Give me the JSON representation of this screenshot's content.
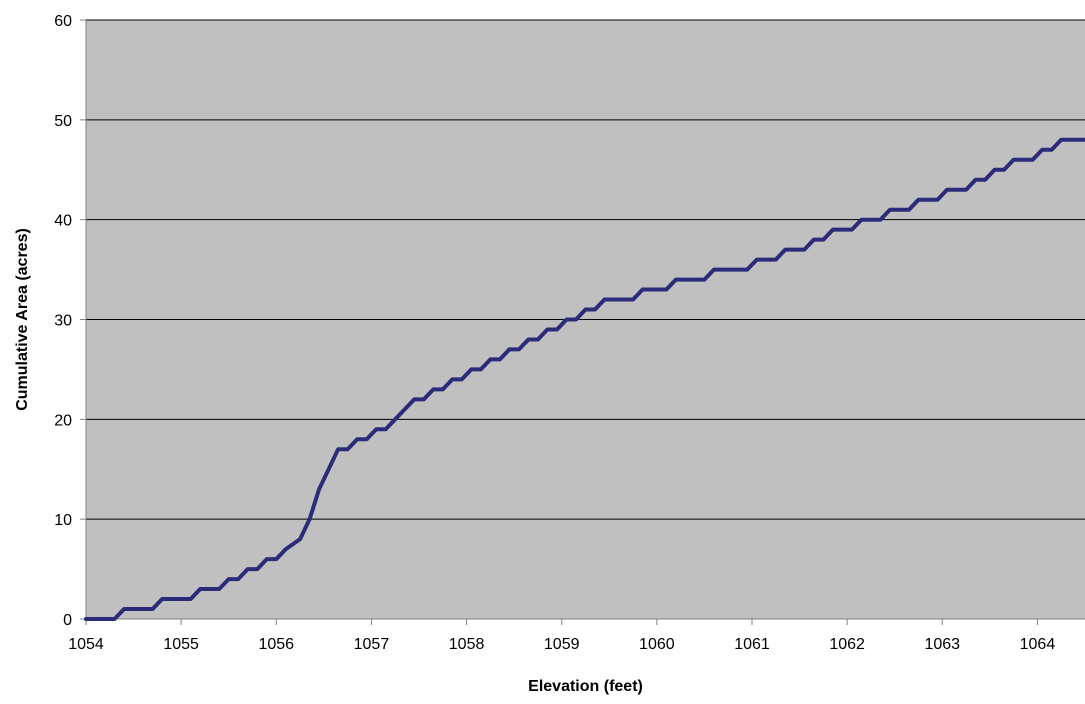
{
  "chart_data": {
    "type": "line",
    "title": "",
    "xlabel": "Elevation (feet)",
    "ylabel": "Cumulative Area (acres)",
    "xlim": [
      1054,
      1064.5
    ],
    "ylim": [
      0,
      60
    ],
    "x_ticks": [
      1054,
      1055,
      1056,
      1057,
      1058,
      1059,
      1060,
      1061,
      1062,
      1063,
      1064
    ],
    "y_ticks": [
      0,
      10,
      20,
      30,
      40,
      50,
      60
    ],
    "grid": "horizontal",
    "legend": "none",
    "plot_background": "#C0C0C0",
    "line_color": "#2B2B7A",
    "series": [
      {
        "values": [
          [
            1054.0,
            0
          ],
          [
            1054.3,
            0
          ],
          [
            1054.4,
            1
          ],
          [
            1054.7,
            1
          ],
          [
            1054.8,
            2
          ],
          [
            1055.1,
            2
          ],
          [
            1055.2,
            3
          ],
          [
            1055.4,
            3
          ],
          [
            1055.5,
            4
          ],
          [
            1055.6,
            4
          ],
          [
            1055.7,
            5
          ],
          [
            1055.8,
            5
          ],
          [
            1055.9,
            6
          ],
          [
            1056.0,
            6
          ],
          [
            1056.1,
            7
          ],
          [
            1056.25,
            8
          ],
          [
            1056.35,
            10
          ],
          [
            1056.45,
            13
          ],
          [
            1056.55,
            15
          ],
          [
            1056.65,
            17
          ],
          [
            1056.75,
            17
          ],
          [
            1056.85,
            18
          ],
          [
            1056.95,
            18
          ],
          [
            1057.05,
            19
          ],
          [
            1057.15,
            19
          ],
          [
            1057.25,
            20
          ],
          [
            1057.35,
            21
          ],
          [
            1057.45,
            22
          ],
          [
            1057.55,
            22
          ],
          [
            1057.65,
            23
          ],
          [
            1057.75,
            23
          ],
          [
            1057.85,
            24
          ],
          [
            1057.95,
            24
          ],
          [
            1058.05,
            25
          ],
          [
            1058.15,
            25
          ],
          [
            1058.25,
            26
          ],
          [
            1058.35,
            26
          ],
          [
            1058.45,
            27
          ],
          [
            1058.55,
            27
          ],
          [
            1058.65,
            28
          ],
          [
            1058.75,
            28
          ],
          [
            1058.85,
            29
          ],
          [
            1058.95,
            29
          ],
          [
            1059.05,
            30
          ],
          [
            1059.15,
            30
          ],
          [
            1059.25,
            31
          ],
          [
            1059.35,
            31
          ],
          [
            1059.45,
            32
          ],
          [
            1059.75,
            32
          ],
          [
            1059.85,
            33
          ],
          [
            1060.1,
            33
          ],
          [
            1060.2,
            34
          ],
          [
            1060.5,
            34
          ],
          [
            1060.6,
            35
          ],
          [
            1060.95,
            35
          ],
          [
            1061.05,
            36
          ],
          [
            1061.25,
            36
          ],
          [
            1061.35,
            37
          ],
          [
            1061.55,
            37
          ],
          [
            1061.65,
            38
          ],
          [
            1061.75,
            38
          ],
          [
            1061.85,
            39
          ],
          [
            1062.05,
            39
          ],
          [
            1062.15,
            40
          ],
          [
            1062.35,
            40
          ],
          [
            1062.45,
            41
          ],
          [
            1062.65,
            41
          ],
          [
            1062.75,
            42
          ],
          [
            1062.95,
            42
          ],
          [
            1063.05,
            43
          ],
          [
            1063.25,
            43
          ],
          [
            1063.35,
            44
          ],
          [
            1063.45,
            44
          ],
          [
            1063.55,
            45
          ],
          [
            1063.65,
            45
          ],
          [
            1063.75,
            46
          ],
          [
            1063.95,
            46
          ],
          [
            1064.05,
            47
          ],
          [
            1064.15,
            47
          ],
          [
            1064.25,
            48
          ],
          [
            1064.5,
            48
          ]
        ]
      }
    ]
  }
}
